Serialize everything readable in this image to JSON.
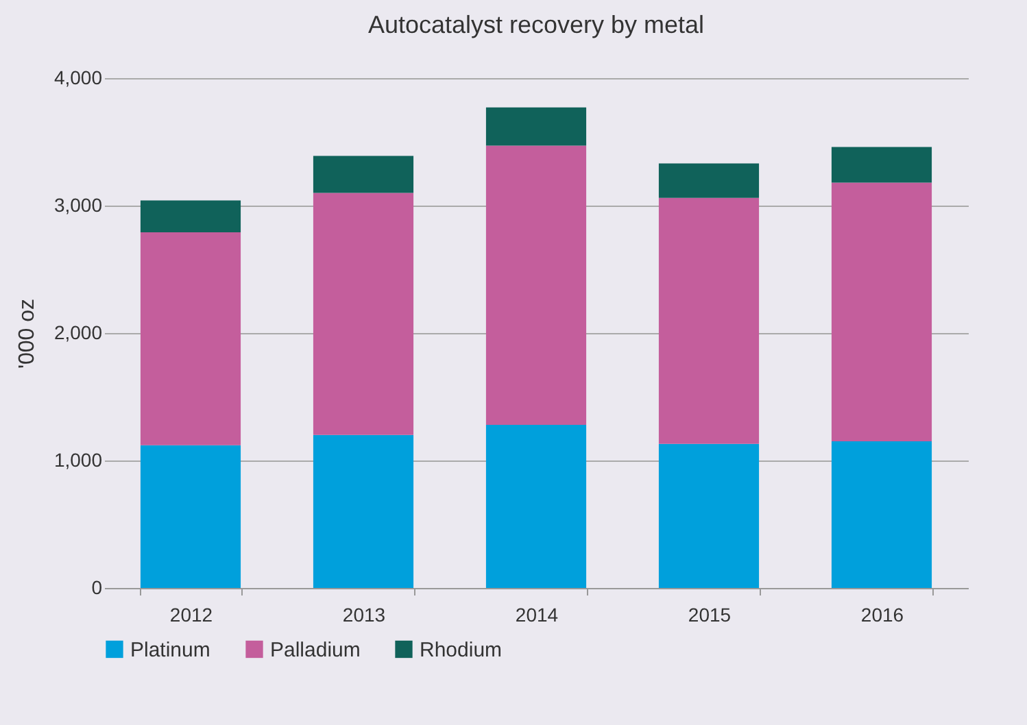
{
  "chart_data": {
    "type": "bar",
    "title": "Autocatalyst recovery by metal",
    "ylabel": "'000 oz",
    "categories": [
      "2012",
      "2013",
      "2014",
      "2015",
      "2016"
    ],
    "series": [
      {
        "name": "Platinum",
        "color": "#00a0dc",
        "values": [
          1120,
          1200,
          1280,
          1130,
          1150
        ]
      },
      {
        "name": "Palladium",
        "color": "#c45e9c",
        "values": [
          1670,
          1900,
          2190,
          1930,
          2030
        ]
      },
      {
        "name": "Rhodium",
        "color": "#10625a",
        "values": [
          250,
          290,
          300,
          270,
          280
        ]
      }
    ],
    "stacked": true,
    "ylim": [
      0,
      4000
    ],
    "yticks": [
      {
        "value": 0,
        "label": "0"
      },
      {
        "value": 1000,
        "label": "1,000"
      },
      {
        "value": 2000,
        "label": "2,000"
      },
      {
        "value": 3000,
        "label": "3,000"
      },
      {
        "value": 4000,
        "label": "4,000"
      }
    ],
    "grid": "y",
    "legend": "bottom"
  }
}
